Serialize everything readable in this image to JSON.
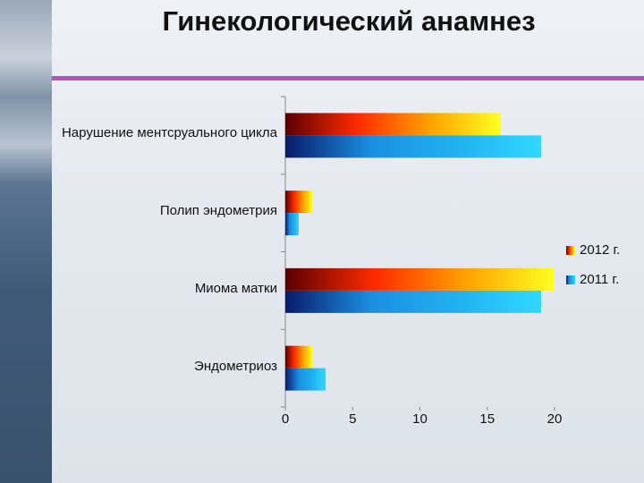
{
  "chart_data": {
    "type": "hbar",
    "title": "Гинекологический анамнез",
    "categories": [
      "Нарушение ментсруального цикла",
      "Полип эндометрия",
      "Миома матки",
      "Эндометриоз"
    ],
    "series": [
      {
        "name": "2012 г.",
        "color": "#ff2a00",
        "values": [
          16,
          2,
          20,
          2
        ]
      },
      {
        "name": "2011 г.",
        "color": "#1a8fe0",
        "values": [
          19,
          1,
          19,
          3
        ]
      }
    ],
    "xlim": [
      0,
      20
    ],
    "xticks": [
      0,
      5,
      10,
      15,
      20
    ],
    "legend": "right"
  }
}
